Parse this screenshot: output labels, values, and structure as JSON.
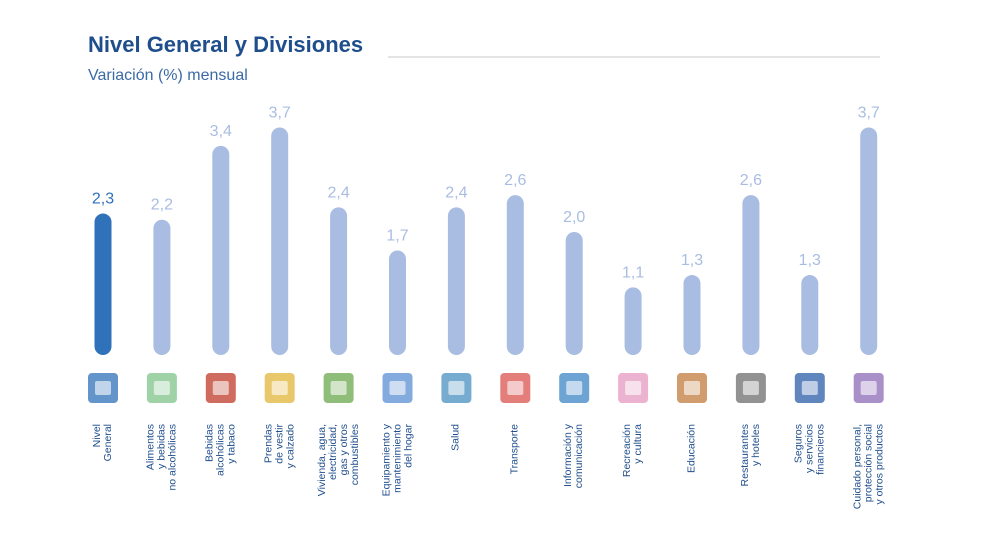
{
  "chart_data": {
    "type": "bar",
    "title": "Nivel General y Divisiones",
    "subtitle": "Variación (%) mensual",
    "categories": [
      "Nivel\nGeneral",
      "Alimentos\ny bebidas\nno alcohólicas",
      "Bebidas\nalcohólicas\ny tabaco",
      "Prendas\nde vestir\ny calzado",
      "Vivienda, agua,\nelectricidad,\ngas y otros\ncombustibles",
      "Equipamiento y\nmantenimiento\ndel hogar",
      "Salud",
      "Transporte",
      "Información y\ncomunicación",
      "Recreación\ny cultura",
      "Educación",
      "Restaurantes\ny hoteles",
      "Seguros\ny servicios\nfinancieros",
      "Cuidado personal,\nprotección social\ny otros productos"
    ],
    "values": [
      2.3,
      2.2,
      3.4,
      3.7,
      2.4,
      1.7,
      2.4,
      2.6,
      2.0,
      1.1,
      1.3,
      2.6,
      1.3,
      3.7
    ],
    "value_labels": [
      "2,3",
      "2,2",
      "3,4",
      "3,7",
      "2,4",
      "1,7",
      "2,4",
      "2,6",
      "2,0",
      "1,1",
      "1,3",
      "2,6",
      "1,3",
      "3,7"
    ],
    "colors": [
      "#2f72ba",
      "#a9bde2",
      "#a9bde2",
      "#a9bde2",
      "#a9bde2",
      "#a9bde2",
      "#a9bde2",
      "#a9bde2",
      "#a9bde2",
      "#a9bde2",
      "#a9bde2",
      "#a9bde2",
      "#a9bde2",
      "#a9bde2"
    ],
    "label_colors": [
      "#2f72ba",
      "#a9bde2",
      "#a9bde2",
      "#a9bde2",
      "#a9bde2",
      "#a9bde2",
      "#a9bde2",
      "#a9bde2",
      "#a9bde2",
      "#a9bde2",
      "#a9bde2",
      "#a9bde2",
      "#a9bde2",
      "#a9bde2"
    ],
    "ylim": [
      0,
      4
    ]
  }
}
